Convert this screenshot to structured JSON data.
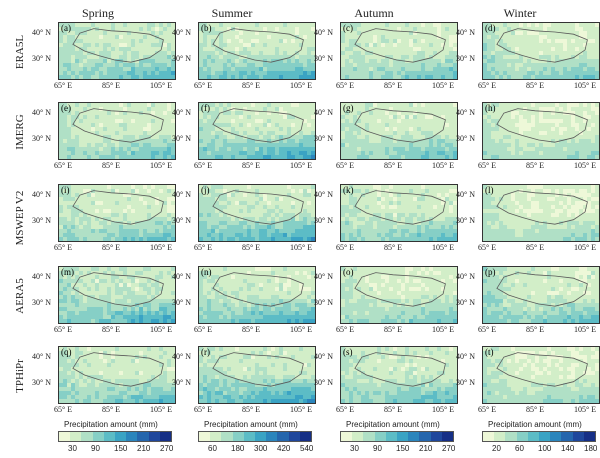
{
  "seasons": [
    "Spring",
    "Summer",
    "Autumn",
    "Winter"
  ],
  "products": [
    "ERA5L",
    "IMERG",
    "MSWEP V2",
    "AERA5",
    "TPHiPr"
  ],
  "panel_letters": [
    [
      "(a)",
      "(b)",
      "(c)",
      "(d)"
    ],
    [
      "(e)",
      "(f)",
      "(g)",
      "(h)"
    ],
    [
      "(i)",
      "(j)",
      "(k)",
      "(l)"
    ],
    [
      "(m)",
      "(n)",
      "(o)",
      "(p)"
    ],
    [
      "(q)",
      "(r)",
      "(s)",
      "(t)"
    ]
  ],
  "y_ticks": [
    "40° N",
    "30° N"
  ],
  "x_ticks": [
    "65° E",
    "85° E",
    "105° E"
  ],
  "colorbars": [
    {
      "label": "Precipitation amount (mm)",
      "ticks": [
        "30",
        "90",
        "150",
        "210",
        "270"
      ]
    },
    {
      "label": "Precipitation amount (mm)",
      "ticks": [
        "60",
        "180",
        "300",
        "420",
        "540"
      ]
    },
    {
      "label": "Precipitation amount (mm)",
      "ticks": [
        "30",
        "90",
        "150",
        "210",
        "270"
      ]
    },
    {
      "label": "Precipitation amount (mm)",
      "ticks": [
        "20",
        "60",
        "100",
        "140",
        "180"
      ]
    }
  ],
  "colors": {
    "scale": [
      "#eef8d8",
      "#d2eec8",
      "#b0e0c6",
      "#86cfc6",
      "#5cbcc6",
      "#3aa3c4",
      "#2b85bc",
      "#2566ad",
      "#1f479c",
      "#162f86"
    ],
    "plateau_outline": "#5a5a5a"
  },
  "panel_intensity": [
    [
      0.65,
      0.55,
      0.55,
      0.7
    ],
    [
      0.55,
      0.6,
      0.55,
      0.5
    ],
    [
      0.55,
      0.6,
      0.55,
      0.5
    ],
    [
      0.75,
      0.55,
      0.5,
      0.8
    ],
    [
      0.6,
      0.65,
      0.6,
      0.55
    ]
  ]
}
